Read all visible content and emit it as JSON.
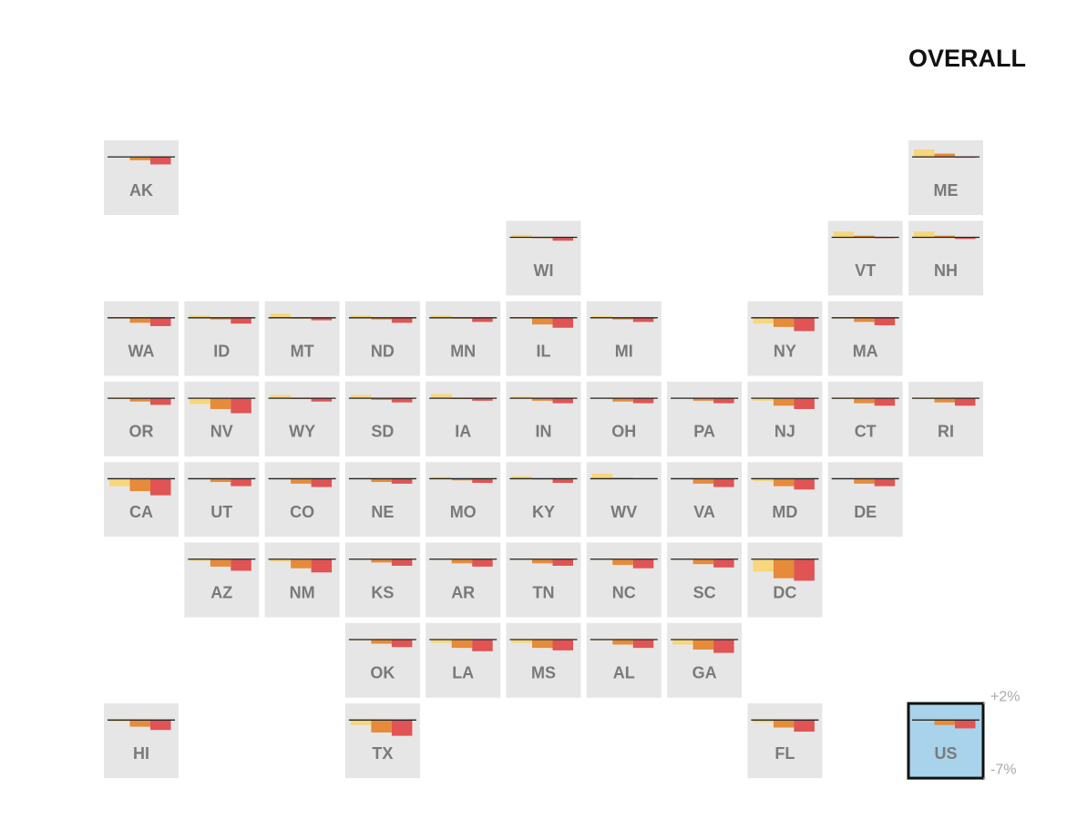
{
  "chart_data": {
    "type": "tile-bar",
    "title": "OVERALL",
    "colors": [
      "#f7d67c",
      "#e58b3a",
      "#e05454"
    ],
    "ylim": [
      -7,
      2
    ],
    "yticks": [
      {
        "value": 2,
        "label": "+2%"
      },
      {
        "value": -7,
        "label": "-7%"
      }
    ],
    "tiles": [
      {
        "label": "AK",
        "values": [
          0,
          -0.4,
          -0.9
        ]
      },
      {
        "label": "ME",
        "values": [
          0.9,
          0.4,
          -0.1
        ]
      },
      {
        "label": "WI",
        "values": [
          0.3,
          -0.1,
          -0.4
        ]
      },
      {
        "label": "VT",
        "values": [
          0.7,
          0.2,
          -0.1
        ]
      },
      {
        "label": "NH",
        "values": [
          0.7,
          0.2,
          -0.2
        ]
      },
      {
        "label": "WA",
        "values": [
          -0.1,
          -0.6,
          -1.0
        ]
      },
      {
        "label": "ID",
        "values": [
          0.3,
          -0.2,
          -0.7
        ]
      },
      {
        "label": "MT",
        "values": [
          0.5,
          -0.1,
          -0.3
        ]
      },
      {
        "label": "ND",
        "values": [
          0.3,
          -0.2,
          -0.6
        ]
      },
      {
        "label": "MN",
        "values": [
          0.3,
          -0.1,
          -0.5
        ]
      },
      {
        "label": "IL",
        "values": [
          -0.1,
          -0.8,
          -1.2
        ]
      },
      {
        "label": "MI",
        "values": [
          0.2,
          -0.2,
          -0.5
        ]
      },
      {
        "label": "NY",
        "values": [
          -0.7,
          -1.1,
          -1.6
        ]
      },
      {
        "label": "MA",
        "values": [
          -0.1,
          -0.5,
          -0.9
        ]
      },
      {
        "label": "OR",
        "values": [
          -0.1,
          -0.4,
          -0.8
        ]
      },
      {
        "label": "NV",
        "values": [
          -0.7,
          -1.3,
          -1.8
        ]
      },
      {
        "label": "WY",
        "values": [
          0.4,
          -0.1,
          -0.4
        ]
      },
      {
        "label": "SD",
        "values": [
          0.4,
          -0.2,
          -0.5
        ]
      },
      {
        "label": "IA",
        "values": [
          0.5,
          -0.1,
          -0.3
        ]
      },
      {
        "label": "IN",
        "values": [
          0.2,
          -0.3,
          -0.6
        ]
      },
      {
        "label": "OH",
        "values": [
          0.1,
          -0.4,
          -0.6
        ]
      },
      {
        "label": "PA",
        "values": [
          0.1,
          -0.3,
          -0.6
        ]
      },
      {
        "label": "NJ",
        "values": [
          -0.3,
          -0.9,
          -1.3
        ]
      },
      {
        "label": "CT",
        "values": [
          -0.1,
          -0.6,
          -0.9
        ]
      },
      {
        "label": "RI",
        "values": [
          -0.1,
          -0.5,
          -0.9
        ]
      },
      {
        "label": "CA",
        "values": [
          -0.9,
          -1.5,
          -2.0
        ]
      },
      {
        "label": "UT",
        "values": [
          -0.1,
          -0.4,
          -0.9
        ]
      },
      {
        "label": "CO",
        "values": [
          -0.1,
          -0.6,
          -1.0
        ]
      },
      {
        "label": "NE",
        "values": [
          0.1,
          -0.4,
          -0.6
        ]
      },
      {
        "label": "MO",
        "values": [
          0.2,
          -0.2,
          -0.5
        ]
      },
      {
        "label": "KY",
        "values": [
          0.3,
          -0.1,
          -0.5
        ]
      },
      {
        "label": "WV",
        "values": [
          0.6,
          0.1,
          0
        ]
      },
      {
        "label": "VA",
        "values": [
          -0.1,
          -0.6,
          -1.0
        ]
      },
      {
        "label": "MD",
        "values": [
          -0.3,
          -0.9,
          -1.3
        ]
      },
      {
        "label": "DE",
        "values": [
          -0.1,
          -0.6,
          -0.9
        ]
      },
      {
        "label": "AZ",
        "values": [
          -0.2,
          -0.9,
          -1.4
        ]
      },
      {
        "label": "NM",
        "values": [
          -0.3,
          -1.1,
          -1.6
        ]
      },
      {
        "label": "KS",
        "values": [
          -0.1,
          -0.4,
          -0.8
        ]
      },
      {
        "label": "AR",
        "values": [
          -0.1,
          -0.5,
          -0.9
        ]
      },
      {
        "label": "TN",
        "values": [
          -0.1,
          -0.5,
          -0.8
        ]
      },
      {
        "label": "NC",
        "values": [
          -0.1,
          -0.7,
          -1.1
        ]
      },
      {
        "label": "SC",
        "values": [
          -0.1,
          -0.6,
          -1.0
        ]
      },
      {
        "label": "DC",
        "values": [
          -1.5,
          -2.3,
          -2.6
        ]
      },
      {
        "label": "OK",
        "values": [
          -0.1,
          -0.5,
          -0.9
        ]
      },
      {
        "label": "LA",
        "values": [
          -0.4,
          -1.0,
          -1.4
        ]
      },
      {
        "label": "MS",
        "values": [
          -0.4,
          -1.0,
          -1.3
        ]
      },
      {
        "label": "AL",
        "values": [
          -0.1,
          -0.6,
          -1.0
        ]
      },
      {
        "label": "GA",
        "values": [
          -0.6,
          -1.2,
          -1.6
        ]
      },
      {
        "label": "HI",
        "values": [
          -0.2,
          -0.8,
          -1.2
        ]
      },
      {
        "label": "TX",
        "values": [
          -0.6,
          -1.5,
          -1.9
        ]
      },
      {
        "label": "FL",
        "values": [
          -0.3,
          -0.9,
          -1.4
        ]
      },
      {
        "label": "US",
        "values": [
          -0.1,
          -0.6,
          -1.0
        ],
        "selected": true
      }
    ]
  }
}
